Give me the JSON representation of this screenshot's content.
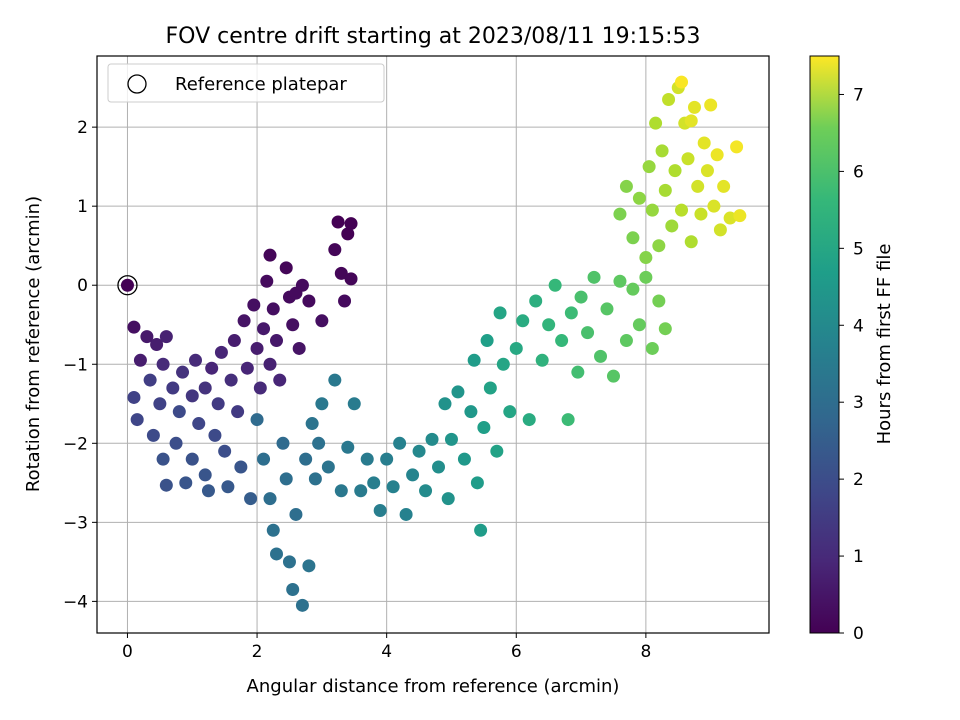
{
  "chart_data": {
    "type": "scatter",
    "title": "FOV centre drift starting at 2023/08/11 19:15:53",
    "xlabel": "Angular distance from reference (arcmin)",
    "ylabel": "Rotation from reference (arcmin)",
    "xlim": [
      -0.47,
      9.9
    ],
    "ylim": [
      -4.4,
      2.9
    ],
    "xticks": [
      0,
      2,
      4,
      6,
      8
    ],
    "yticks": [
      -4,
      -3,
      -2,
      -1,
      0,
      1,
      2
    ],
    "grid": true,
    "legend": {
      "placement": "top-left",
      "entries": [
        "Reference platepar"
      ]
    },
    "reference_point": {
      "x": 0,
      "y": 0
    },
    "colorbar": {
      "label": "Hours from first FF file",
      "range": [
        0,
        7.5
      ],
      "ticks": [
        0,
        1,
        2,
        3,
        4,
        5,
        6,
        7
      ],
      "colormap": "viridis"
    },
    "points": [
      {
        "x": 0.1,
        "y": -0.53,
        "t": 0.3
      },
      {
        "x": 0.1,
        "y": -1.42,
        "t": 1.5
      },
      {
        "x": 0.15,
        "y": -1.7,
        "t": 1.6
      },
      {
        "x": 0.2,
        "y": -0.95,
        "t": 0.6
      },
      {
        "x": 0.3,
        "y": -0.65,
        "t": 0.5
      },
      {
        "x": 0.35,
        "y": -1.2,
        "t": 1.4
      },
      {
        "x": 0.4,
        "y": -1.9,
        "t": 1.7
      },
      {
        "x": 0.45,
        "y": -0.75,
        "t": 0.6
      },
      {
        "x": 0.5,
        "y": -1.5,
        "t": 1.5
      },
      {
        "x": 0.55,
        "y": -2.2,
        "t": 1.9
      },
      {
        "x": 0.6,
        "y": -2.53,
        "t": 1.9
      },
      {
        "x": 0.55,
        "y": -1.0,
        "t": 0.9
      },
      {
        "x": 0.6,
        "y": -0.65,
        "t": 0.7
      },
      {
        "x": 0.7,
        "y": -1.3,
        "t": 1.3
      },
      {
        "x": 0.75,
        "y": -2.0,
        "t": 1.8
      },
      {
        "x": 0.8,
        "y": -1.6,
        "t": 1.7
      },
      {
        "x": 0.85,
        "y": -1.1,
        "t": 1.1
      },
      {
        "x": 0.9,
        "y": -2.5,
        "t": 2.0
      },
      {
        "x": 1.0,
        "y": -1.4,
        "t": 1.2
      },
      {
        "x": 1.0,
        "y": -2.2,
        "t": 1.9
      },
      {
        "x": 1.05,
        "y": -0.95,
        "t": 0.9
      },
      {
        "x": 1.1,
        "y": -1.75,
        "t": 1.6
      },
      {
        "x": 1.2,
        "y": -1.3,
        "t": 1.1
      },
      {
        "x": 1.2,
        "y": -2.4,
        "t": 2.0
      },
      {
        "x": 1.25,
        "y": -2.6,
        "t": 2.1
      },
      {
        "x": 1.3,
        "y": -1.05,
        "t": 0.8
      },
      {
        "x": 1.35,
        "y": -1.9,
        "t": 1.7
      },
      {
        "x": 1.4,
        "y": -1.5,
        "t": 1.3
      },
      {
        "x": 1.45,
        "y": -0.85,
        "t": 0.8
      },
      {
        "x": 1.5,
        "y": -2.1,
        "t": 1.8
      },
      {
        "x": 1.55,
        "y": -2.55,
        "t": 2.1
      },
      {
        "x": 1.6,
        "y": -1.2,
        "t": 1.0
      },
      {
        "x": 1.65,
        "y": -0.7,
        "t": 0.6
      },
      {
        "x": 1.7,
        "y": -1.6,
        "t": 1.3
      },
      {
        "x": 1.75,
        "y": -2.3,
        "t": 2.0
      },
      {
        "x": 1.8,
        "y": -0.45,
        "t": 0.4
      },
      {
        "x": 1.85,
        "y": -1.05,
        "t": 0.8
      },
      {
        "x": 1.9,
        "y": -2.7,
        "t": 2.2
      },
      {
        "x": 1.95,
        "y": -0.25,
        "t": 0.3
      },
      {
        "x": 2.0,
        "y": -0.8,
        "t": 0.6
      },
      {
        "x": 2.05,
        "y": -1.3,
        "t": 0.9
      },
      {
        "x": 2.1,
        "y": -0.55,
        "t": 0.5
      },
      {
        "x": 2.15,
        "y": 0.05,
        "t": 0.2
      },
      {
        "x": 2.2,
        "y": -1.0,
        "t": 0.7
      },
      {
        "x": 2.2,
        "y": 0.38,
        "t": 0.1
      },
      {
        "x": 2.25,
        "y": -0.3,
        "t": 0.3
      },
      {
        "x": 2.3,
        "y": -0.7,
        "t": 0.5
      },
      {
        "x": 2.35,
        "y": -1.2,
        "t": 0.8
      },
      {
        "x": 2.45,
        "y": 0.22,
        "t": 0.1
      },
      {
        "x": 2.5,
        "y": -0.15,
        "t": 0.2
      },
      {
        "x": 2.55,
        "y": -0.5,
        "t": 0.3
      },
      {
        "x": 2.6,
        "y": -0.1,
        "t": 0.2
      },
      {
        "x": 2.65,
        "y": -0.8,
        "t": 0.4
      },
      {
        "x": 2.7,
        "y": 0.0,
        "t": 0.2
      },
      {
        "x": 2.8,
        "y": -0.2,
        "t": 0.2
      },
      {
        "x": 3.0,
        "y": -0.45,
        "t": 0.3
      },
      {
        "x": 3.2,
        "y": 0.45,
        "t": 0.1
      },
      {
        "x": 3.25,
        "y": 0.8,
        "t": 0.0
      },
      {
        "x": 3.3,
        "y": 0.15,
        "t": 0.1
      },
      {
        "x": 3.35,
        "y": -0.2,
        "t": 0.2
      },
      {
        "x": 3.4,
        "y": 0.65,
        "t": 0.0
      },
      {
        "x": 3.45,
        "y": 0.78,
        "t": 0.0
      },
      {
        "x": 3.45,
        "y": 0.08,
        "t": 0.1
      },
      {
        "x": 2.0,
        "y": -1.7,
        "t": 2.6
      },
      {
        "x": 2.1,
        "y": -2.2,
        "t": 2.7
      },
      {
        "x": 2.2,
        "y": -2.7,
        "t": 2.7
      },
      {
        "x": 2.25,
        "y": -3.1,
        "t": 2.8
      },
      {
        "x": 2.3,
        "y": -3.4,
        "t": 2.8
      },
      {
        "x": 2.4,
        "y": -2.0,
        "t": 2.6
      },
      {
        "x": 2.45,
        "y": -2.45,
        "t": 2.7
      },
      {
        "x": 2.5,
        "y": -3.5,
        "t": 2.8
      },
      {
        "x": 2.55,
        "y": -3.85,
        "t": 2.8
      },
      {
        "x": 2.6,
        "y": -2.9,
        "t": 2.7
      },
      {
        "x": 2.7,
        "y": -4.05,
        "t": 2.8
      },
      {
        "x": 2.75,
        "y": -2.2,
        "t": 2.7
      },
      {
        "x": 2.8,
        "y": -3.55,
        "t": 2.9
      },
      {
        "x": 2.85,
        "y": -1.75,
        "t": 2.9
      },
      {
        "x": 2.9,
        "y": -2.45,
        "t": 2.8
      },
      {
        "x": 2.95,
        "y": -2.0,
        "t": 2.8
      },
      {
        "x": 3.0,
        "y": -1.5,
        "t": 3.0
      },
      {
        "x": 3.1,
        "y": -2.3,
        "t": 2.9
      },
      {
        "x": 3.2,
        "y": -1.2,
        "t": 3.0
      },
      {
        "x": 3.3,
        "y": -2.6,
        "t": 3.0
      },
      {
        "x": 3.4,
        "y": -2.05,
        "t": 3.0
      },
      {
        "x": 3.5,
        "y": -1.5,
        "t": 3.1
      },
      {
        "x": 3.6,
        "y": -2.6,
        "t": 3.1
      },
      {
        "x": 3.7,
        "y": -2.2,
        "t": 3.1
      },
      {
        "x": 3.8,
        "y": -2.5,
        "t": 3.2
      },
      {
        "x": 3.9,
        "y": -2.85,
        "t": 3.2
      },
      {
        "x": 4.0,
        "y": -2.2,
        "t": 3.2
      },
      {
        "x": 4.1,
        "y": -2.55,
        "t": 3.3
      },
      {
        "x": 4.2,
        "y": -2.0,
        "t": 3.3
      },
      {
        "x": 4.3,
        "y": -2.9,
        "t": 3.3
      },
      {
        "x": 4.4,
        "y": -2.4,
        "t": 3.4
      },
      {
        "x": 4.5,
        "y": -2.1,
        "t": 3.5
      },
      {
        "x": 4.6,
        "y": -2.6,
        "t": 3.6
      },
      {
        "x": 4.7,
        "y": -1.95,
        "t": 3.6
      },
      {
        "x": 4.8,
        "y": -2.3,
        "t": 3.7
      },
      {
        "x": 4.9,
        "y": -1.5,
        "t": 3.8
      },
      {
        "x": 4.95,
        "y": -2.7,
        "t": 3.8
      },
      {
        "x": 5.0,
        "y": -1.95,
        "t": 3.9
      },
      {
        "x": 5.1,
        "y": -1.35,
        "t": 3.9
      },
      {
        "x": 5.2,
        "y": -2.2,
        "t": 4.0
      },
      {
        "x": 5.3,
        "y": -1.6,
        "t": 4.0
      },
      {
        "x": 5.35,
        "y": -0.95,
        "t": 4.1
      },
      {
        "x": 5.4,
        "y": -2.5,
        "t": 4.1
      },
      {
        "x": 5.45,
        "y": -3.1,
        "t": 4.1
      },
      {
        "x": 5.5,
        "y": -1.8,
        "t": 4.2
      },
      {
        "x": 5.55,
        "y": -0.7,
        "t": 4.2
      },
      {
        "x": 5.6,
        "y": -1.3,
        "t": 4.3
      },
      {
        "x": 5.7,
        "y": -2.1,
        "t": 4.3
      },
      {
        "x": 5.75,
        "y": -0.35,
        "t": 4.4
      },
      {
        "x": 5.8,
        "y": -1.0,
        "t": 4.4
      },
      {
        "x": 5.9,
        "y": -1.6,
        "t": 4.4
      },
      {
        "x": 6.0,
        "y": -0.8,
        "t": 4.5
      },
      {
        "x": 6.1,
        "y": -0.45,
        "t": 4.6
      },
      {
        "x": 6.2,
        "y": -1.7,
        "t": 4.6
      },
      {
        "x": 6.3,
        "y": -0.2,
        "t": 4.7
      },
      {
        "x": 6.4,
        "y": -0.95,
        "t": 4.8
      },
      {
        "x": 6.5,
        "y": -0.5,
        "t": 4.9
      },
      {
        "x": 6.6,
        "y": 0.0,
        "t": 5.0
      },
      {
        "x": 6.7,
        "y": -0.7,
        "t": 5.0
      },
      {
        "x": 6.8,
        "y": -1.7,
        "t": 5.1
      },
      {
        "x": 6.85,
        "y": -0.35,
        "t": 5.1
      },
      {
        "x": 6.95,
        "y": -1.1,
        "t": 5.2
      },
      {
        "x": 7.0,
        "y": -0.15,
        "t": 5.3
      },
      {
        "x": 7.1,
        "y": -0.6,
        "t": 5.3
      },
      {
        "x": 7.2,
        "y": 0.1,
        "t": 5.4
      },
      {
        "x": 7.3,
        "y": -0.9,
        "t": 5.4
      },
      {
        "x": 7.4,
        "y": -0.3,
        "t": 5.5
      },
      {
        "x": 7.5,
        "y": -1.15,
        "t": 5.5
      },
      {
        "x": 7.6,
        "y": 0.05,
        "t": 5.6
      },
      {
        "x": 7.7,
        "y": -0.7,
        "t": 5.6
      },
      {
        "x": 7.8,
        "y": -0.05,
        "t": 5.7
      },
      {
        "x": 7.9,
        "y": -0.5,
        "t": 5.7
      },
      {
        "x": 8.0,
        "y": 0.1,
        "t": 5.8
      },
      {
        "x": 8.1,
        "y": -0.8,
        "t": 5.8
      },
      {
        "x": 8.2,
        "y": -0.2,
        "t": 5.9
      },
      {
        "x": 8.3,
        "y": -0.55,
        "t": 5.9
      },
      {
        "x": 7.6,
        "y": 0.9,
        "t": 6.0
      },
      {
        "x": 7.7,
        "y": 1.25,
        "t": 6.1
      },
      {
        "x": 7.8,
        "y": 0.6,
        "t": 6.0
      },
      {
        "x": 7.9,
        "y": 1.1,
        "t": 6.2
      },
      {
        "x": 8.0,
        "y": 0.35,
        "t": 6.1
      },
      {
        "x": 8.05,
        "y": 1.5,
        "t": 6.3
      },
      {
        "x": 8.1,
        "y": 0.95,
        "t": 6.3
      },
      {
        "x": 8.15,
        "y": 2.05,
        "t": 6.6
      },
      {
        "x": 8.2,
        "y": 0.5,
        "t": 6.2
      },
      {
        "x": 8.25,
        "y": 1.7,
        "t": 6.5
      },
      {
        "x": 8.3,
        "y": 1.2,
        "t": 6.5
      },
      {
        "x": 8.35,
        "y": 2.35,
        "t": 6.8
      },
      {
        "x": 8.4,
        "y": 0.75,
        "t": 6.4
      },
      {
        "x": 8.45,
        "y": 1.45,
        "t": 6.6
      },
      {
        "x": 8.5,
        "y": 2.5,
        "t": 7.0
      },
      {
        "x": 8.55,
        "y": 0.95,
        "t": 6.7
      },
      {
        "x": 8.6,
        "y": 2.05,
        "t": 7.0
      },
      {
        "x": 8.65,
        "y": 1.6,
        "t": 6.9
      },
      {
        "x": 8.7,
        "y": 0.55,
        "t": 6.6
      },
      {
        "x": 8.75,
        "y": 2.25,
        "t": 7.2
      },
      {
        "x": 8.8,
        "y": 1.25,
        "t": 7.0
      },
      {
        "x": 8.85,
        "y": 0.9,
        "t": 6.9
      },
      {
        "x": 8.9,
        "y": 1.8,
        "t": 7.2
      },
      {
        "x": 8.95,
        "y": 1.45,
        "t": 7.1
      },
      {
        "x": 9.0,
        "y": 2.28,
        "t": 7.3
      },
      {
        "x": 9.05,
        "y": 1.0,
        "t": 7.1
      },
      {
        "x": 9.1,
        "y": 1.65,
        "t": 7.3
      },
      {
        "x": 9.15,
        "y": 0.7,
        "t": 7.0
      },
      {
        "x": 9.2,
        "y": 1.25,
        "t": 7.2
      },
      {
        "x": 9.3,
        "y": 0.85,
        "t": 7.1
      },
      {
        "x": 9.4,
        "y": 1.75,
        "t": 7.4
      },
      {
        "x": 9.45,
        "y": 0.88,
        "t": 7.3
      },
      {
        "x": 8.55,
        "y": 2.57,
        "t": 7.45
      },
      {
        "x": 8.7,
        "y": 2.08,
        "t": 7.2
      }
    ]
  }
}
